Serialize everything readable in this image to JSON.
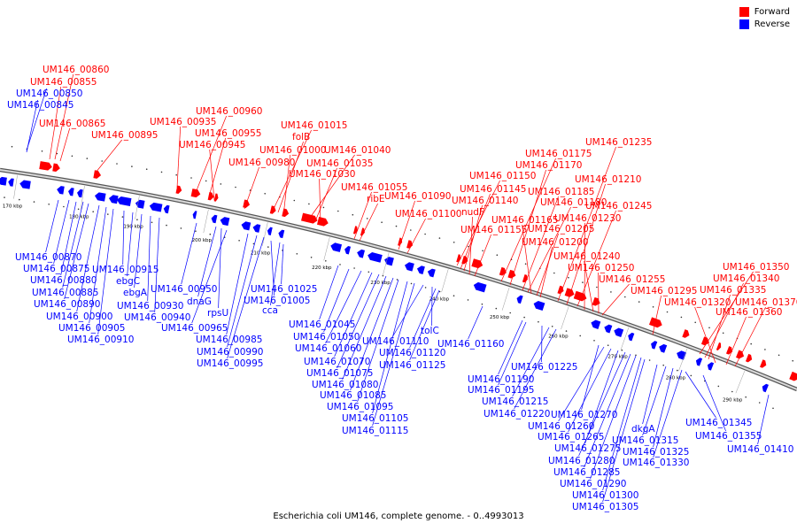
{
  "title": "Escherichia coli UM146, complete genome. - 0..4993013",
  "legend": [
    {
      "label": "Forward",
      "color": "#ff0000"
    },
    {
      "label": "Reverse",
      "color": "#0000ff"
    }
  ],
  "colors": {
    "forward": "#ff0000",
    "reverse": "#0000ff",
    "backbone": "#888888"
  },
  "ticks": [
    "170 kbp",
    "180 kbp",
    "190 kbp",
    "200 kbp",
    "210 kbp",
    "220 kbp",
    "230 kbp",
    "240 kbp",
    "250 kbp",
    "260 kbp",
    "270 kbp",
    "280 kbp",
    "290 kbp"
  ],
  "forward_labels": [
    "UM146_00860",
    "UM146_00855",
    "UM146_00865",
    "UM146_00895",
    "UM146_00935",
    "UM146_00960",
    "UM146_00955",
    "UM146_00945",
    "UM146_00980",
    "UM146_01015",
    "folB",
    "UM146_01000",
    "UM146_01040",
    "UM146_01035",
    "UM146_01030",
    "UM146_01055",
    "ribE",
    "UM146_01090",
    "UM146_01100",
    "UM146_01150",
    "UM146_01145",
    "UM146_01140",
    "nudF",
    "UM146_01155",
    "UM146_01175",
    "UM146_01170",
    "UM146_01185",
    "UM146_01180",
    "UM146_01165",
    "UM146_01205",
    "UM146_01200",
    "UM146_01235",
    "UM146_01210",
    "UM146_01245",
    "UM146_01230",
    "UM146_01240",
    "UM146_01250",
    "UM146_01255",
    "UM146_01295",
    "UM146_01350",
    "UM146_01340",
    "UM146_01335",
    "UM146_01320",
    "UM146_01370",
    "UM146_01360"
  ],
  "reverse_labels": [
    "UM146_00850",
    "UM146_00845",
    "UM146_00870",
    "UM146_00875",
    "UM146_00880",
    "UM146_00885",
    "UM146_00890",
    "UM146_00900",
    "UM146_00905",
    "UM146_00910",
    "UM146_00915",
    "ebgC",
    "ebgA",
    "UM146_00930",
    "UM146_00940",
    "UM146_00950",
    "dnaG",
    "rpsU",
    "UM146_00965",
    "UM146_00985",
    "UM146_00990",
    "UM146_00995",
    "UM146_01005",
    "cca",
    "UM146_01025",
    "UM146_01045",
    "UM146_01050",
    "UM146_01060",
    "UM146_01070",
    "UM146_01075",
    "UM146_01080",
    "UM146_01085",
    "UM146_01095",
    "UM146_01105",
    "UM146_01115",
    "UM146_01110",
    "tolC",
    "UM146_01120",
    "UM146_01125",
    "UM146_01160",
    "UM146_01190",
    "UM146_01195",
    "UM146_01225",
    "UM146_01215",
    "UM146_01220",
    "UM146_01270",
    "UM146_01260",
    "UM146_01265",
    "UM146_01275",
    "UM146_01280",
    "UM146_01285",
    "UM146_01290",
    "UM146_01300",
    "UM146_01305",
    "dkgA",
    "UM146_01315",
    "UM146_01325",
    "UM146_01330",
    "UM146_01345",
    "UM146_01355",
    "UM146_01410"
  ]
}
